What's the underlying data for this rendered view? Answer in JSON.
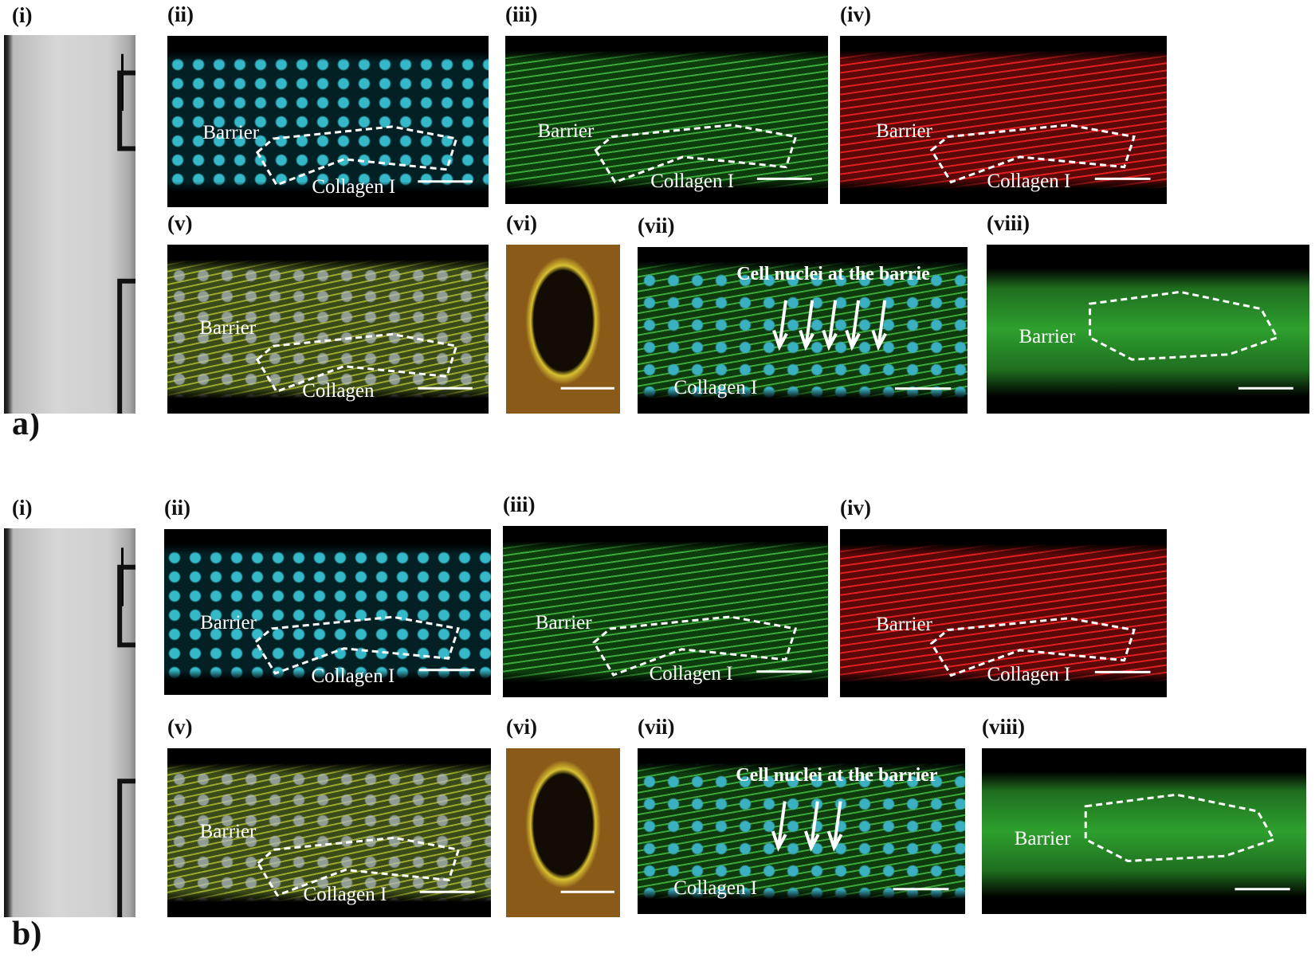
{
  "figure": {
    "parts": [
      {
        "label": "a)",
        "panels": [
          {
            "label": "(i)"
          },
          {
            "label": "(ii)",
            "annotations": [
              "Barrier",
              "Collagen I"
            ]
          },
          {
            "label": "(iii)",
            "annotations": [
              "Barrier",
              "Collagen I"
            ]
          },
          {
            "label": "(iv)",
            "annotations": [
              "Barrier",
              "Collagen I"
            ]
          },
          {
            "label": "(v)",
            "annotations": [
              "Barrier",
              "Collagen"
            ]
          },
          {
            "label": "(vi)"
          },
          {
            "label": "(vii)",
            "annotations": [
              "Cell nuclei at the barrie",
              "Collagen I"
            ]
          },
          {
            "label": "(viii)",
            "annotations": [
              "Barrier"
            ]
          }
        ]
      },
      {
        "label": "b)",
        "panels": [
          {
            "label": "(i)"
          },
          {
            "label": "(ii)",
            "annotations": [
              "Barrier",
              "Collagen I"
            ]
          },
          {
            "label": "(iii)",
            "annotations": [
              "Barrier",
              "Collagen I"
            ]
          },
          {
            "label": "(iv)",
            "annotations": [
              "Barrier",
              "Collagen I"
            ]
          },
          {
            "label": "(v)",
            "annotations": [
              "Barrier",
              "Collagen I"
            ]
          },
          {
            "label": "(vi)"
          },
          {
            "label": "(vii)",
            "annotations": [
              "Cell nuclei at the barrier",
              "Collagen I"
            ]
          },
          {
            "label": "(viii)",
            "annotations": [
              "Barrier"
            ]
          }
        ]
      }
    ]
  }
}
